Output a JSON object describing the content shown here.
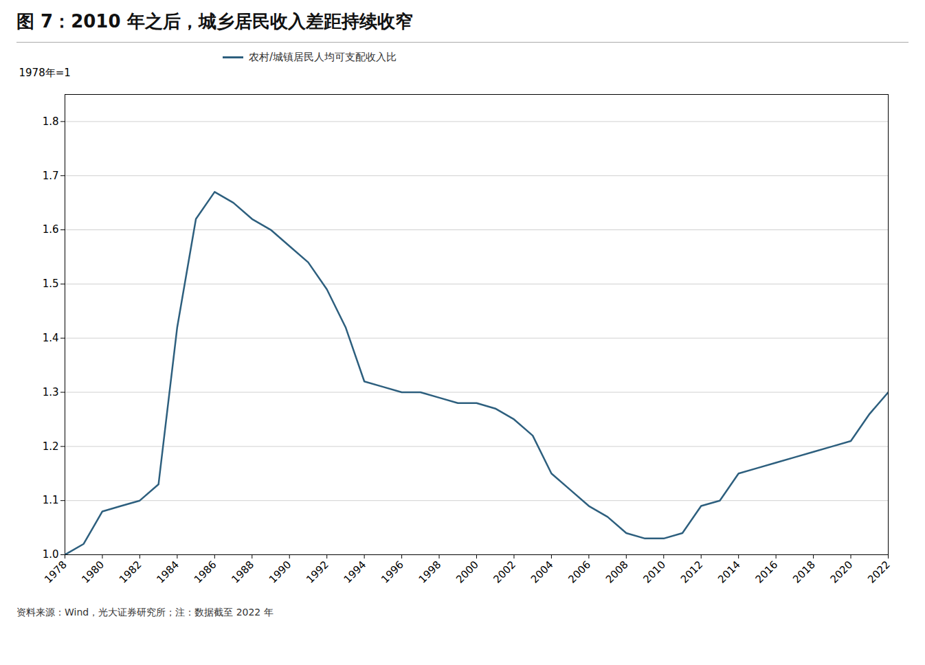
{
  "chart_data": {
    "type": "line",
    "title": "图 7：2010 年之后，城乡居民收入差距持续收窄",
    "ylabel": "1978年=1",
    "footnote": "资料来源：Wind，光大证券研究所；注：数据截至 2022 年",
    "x": [
      1978,
      1979,
      1980,
      1981,
      1982,
      1983,
      1984,
      1985,
      1986,
      1987,
      1988,
      1989,
      1990,
      1991,
      1992,
      1993,
      1994,
      1995,
      1996,
      1997,
      1998,
      1999,
      2000,
      2001,
      2002,
      2003,
      2004,
      2005,
      2006,
      2007,
      2008,
      2009,
      2010,
      2011,
      2012,
      2013,
      2014,
      2015,
      2016,
      2017,
      2018,
      2019,
      2020,
      2021,
      2022
    ],
    "series": [
      {
        "name": "农村/城镇居民人均可支配收入比",
        "color": "#2d5f7e",
        "values": [
          1.0,
          1.02,
          1.08,
          1.09,
          1.1,
          1.13,
          1.42,
          1.62,
          1.67,
          1.65,
          1.62,
          1.6,
          1.57,
          1.54,
          1.49,
          1.42,
          1.32,
          1.31,
          1.3,
          1.3,
          1.29,
          1.28,
          1.28,
          1.27,
          1.25,
          1.22,
          1.15,
          1.12,
          1.09,
          1.07,
          1.04,
          1.03,
          1.03,
          1.04,
          1.09,
          1.1,
          1.15,
          1.16,
          1.17,
          1.18,
          1.19,
          1.2,
          1.21,
          1.26,
          1.3
        ]
      }
    ],
    "xlim": [
      1978,
      2022
    ],
    "xticks": [
      1978,
      1980,
      1982,
      1984,
      1986,
      1988,
      1990,
      1992,
      1994,
      1996,
      1998,
      2000,
      2002,
      2004,
      2006,
      2008,
      2010,
      2012,
      2014,
      2016,
      2018,
      2020,
      2022
    ],
    "ylim": [
      1.0,
      1.85
    ],
    "yticks": [
      {
        "value": 1.0,
        "label": "1.0"
      },
      1.1,
      1.2,
      1.3,
      1.4,
      1.5,
      1.6,
      1.7,
      1.8
    ],
    "grid": "y",
    "legend": "upper left"
  }
}
